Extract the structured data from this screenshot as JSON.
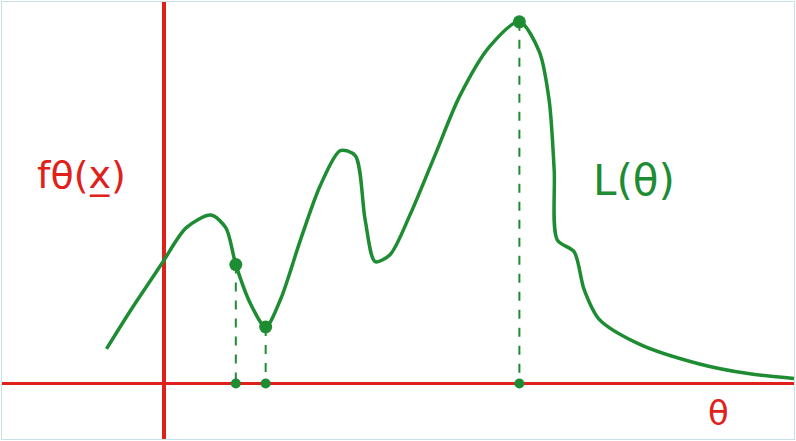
{
  "chart_data": {
    "type": "line",
    "x": [
      -1.16,
      -0.66,
      -0.06,
      0.44,
      0.94,
      1.24,
      1.44,
      1.74,
      2.04,
      2.34,
      2.74,
      3.14,
      3.54,
      3.84,
      4.04,
      4.24,
      4.54,
      4.94,
      5.44,
      5.94,
      6.54,
      7.14,
      7.54,
      7.74,
      7.84,
      7.9,
      8.24,
      8.44,
      8.74,
      9.54,
      10.74,
      11.74,
      12.66
    ],
    "values": [
      0.7,
      1.5,
      2.4,
      3.14,
      3.4,
      3.14,
      2.4,
      1.6,
      1.14,
      1.7,
      2.9,
      4.0,
      4.7,
      4.6,
      3.3,
      2.46,
      2.6,
      3.4,
      4.6,
      5.8,
      6.8,
      7.3,
      6.7,
      5.7,
      4.3,
      2.9,
      2.66,
      1.9,
      1.3,
      0.8,
      0.4,
      0.2,
      0.1
    ],
    "color": "#1e8c32",
    "xlim": [
      -3.26,
      12.66
    ],
    "ylim": [
      -1.12,
      7.7
    ],
    "xticks": [],
    "yticks": [],
    "tick_labels": false,
    "grid": false,
    "x_label": "θ",
    "y_label": "fθ(x̲)",
    "annotations": [
      {
        "text": "L(θ)",
        "x": 9.44,
        "y": 4.1
      }
    ],
    "points": [
      {
        "x": 1.44,
        "y": 2.4
      },
      {
        "x": 2.04,
        "y": 1.14
      },
      {
        "x": 7.14,
        "y": 7.3
      }
    ]
  }
}
